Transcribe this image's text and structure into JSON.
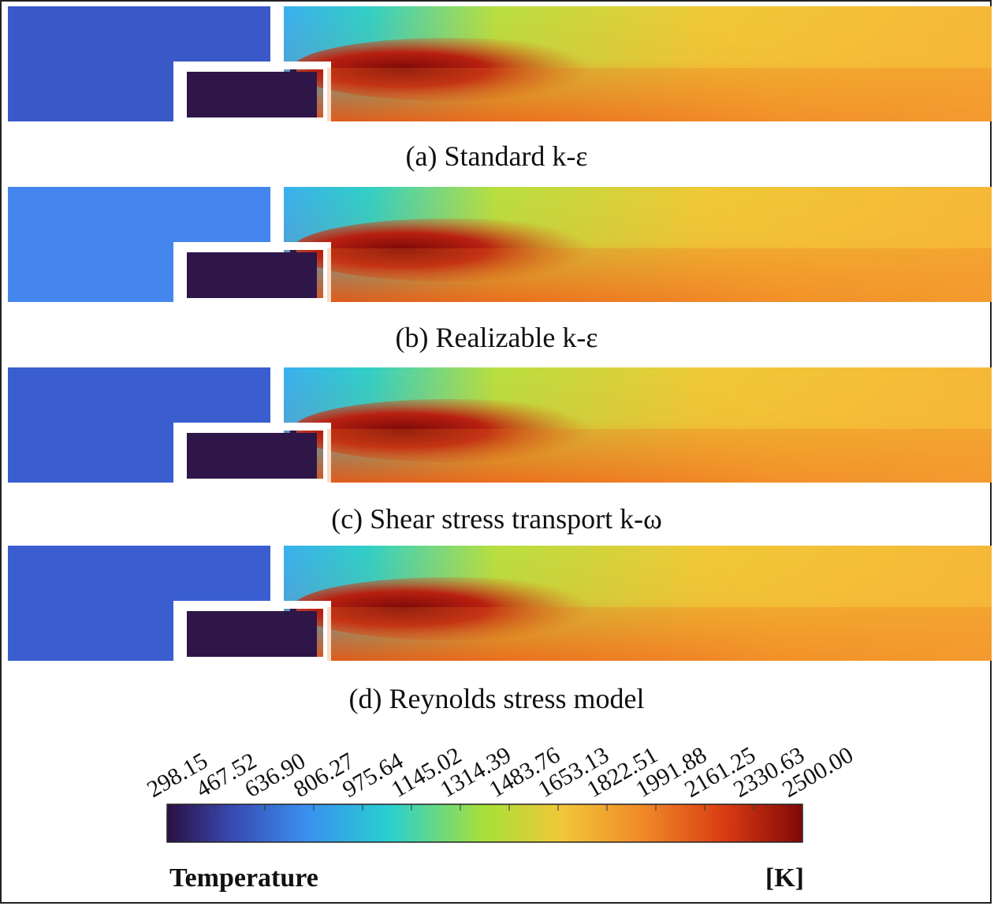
{
  "panels": [
    {
      "caption": "(a) Standard  k-ε"
    },
    {
      "caption": "(b) Realizable  k-ε"
    },
    {
      "caption": "(c) Shear  stress  transport  k-ω"
    },
    {
      "caption": "(d) Reynolds  stress  model"
    }
  ],
  "colorbar": {
    "title": "Temperature",
    "unit": "[K]",
    "labels": [
      "298.15",
      "467.52",
      "636.90",
      "806.27",
      "975.64",
      "1145.02",
      "1314.39",
      "1483.76",
      "1653.13",
      "1822.51",
      "1991.88",
      "2161.25",
      "2330.63",
      "2500.00"
    ]
  }
}
